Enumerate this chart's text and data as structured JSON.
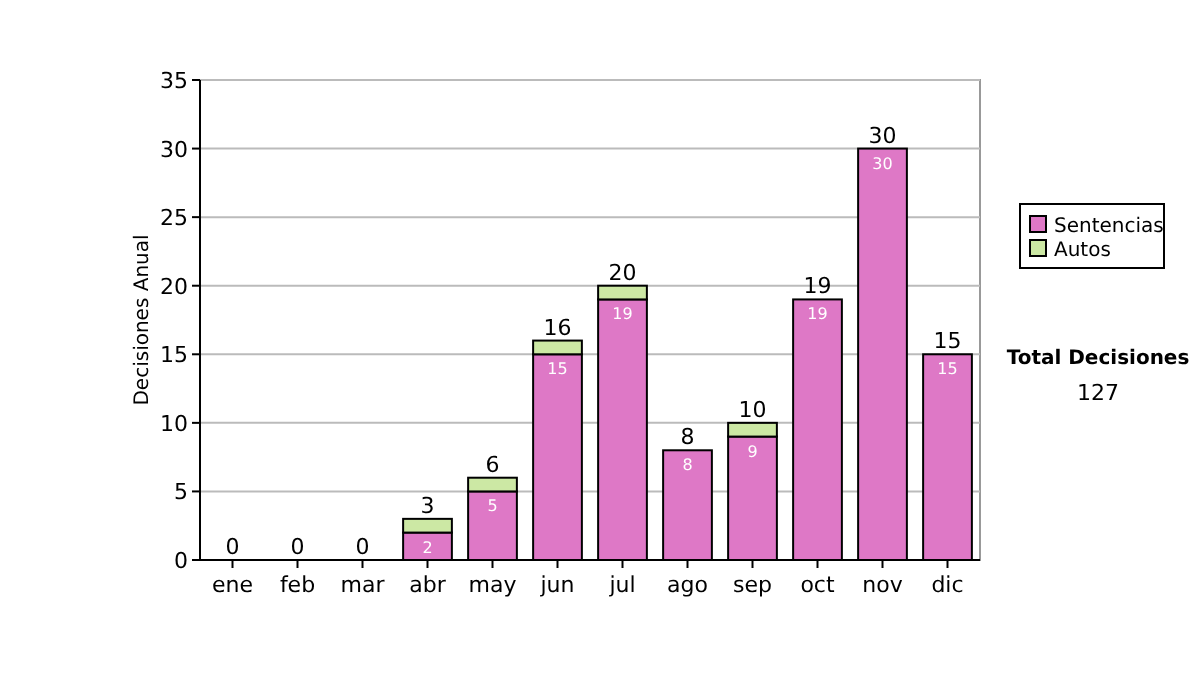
{
  "chart_data": {
    "type": "bar",
    "ylabel": "Decisiones Anual",
    "categories": [
      "ene",
      "feb",
      "mar",
      "abr",
      "may",
      "jun",
      "jul",
      "ago",
      "sep",
      "oct",
      "nov",
      "dic"
    ],
    "series": [
      {
        "name": "Sentencias",
        "color": "#de78c6",
        "values": [
          0,
          0,
          0,
          2,
          5,
          15,
          19,
          8,
          9,
          19,
          30,
          15
        ],
        "value_labels": [
          null,
          null,
          null,
          "2",
          "5",
          "15",
          "19",
          "8",
          "9",
          "19",
          "30",
          "15"
        ]
      },
      {
        "name": "Autos",
        "color": "#cce8a4",
        "values": [
          0,
          0,
          0,
          1,
          1,
          1,
          1,
          0,
          1,
          0,
          0,
          0
        ]
      }
    ],
    "stacked": true,
    "totals": [
      "0",
      "0",
      "0",
      "3",
      "6",
      "16",
      "20",
      "8",
      "10",
      "19",
      "30",
      "15"
    ],
    "ylim": [
      0,
      35
    ],
    "yticks": [
      0,
      5,
      10,
      15,
      20,
      25,
      30,
      35
    ],
    "grid": "y",
    "legend": "right",
    "annotations": [
      "Total Decisiones",
      "127"
    ]
  }
}
